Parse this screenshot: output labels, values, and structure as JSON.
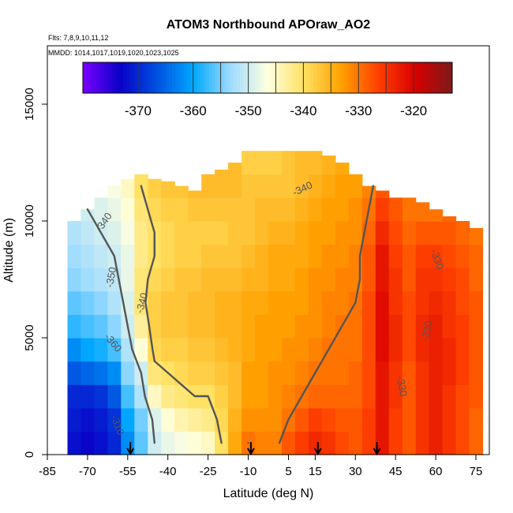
{
  "chart_data": {
    "type": "heatmap",
    "title": "ATOM3 Northbound APOraw_AO2",
    "subtitle_line1": "Flts: 7,8,9,10,11,12",
    "subtitle_line2": "MMDD: 1014,1017,1019,1020,1023,1025",
    "xlabel": "Latitude (deg N)",
    "ylabel": "Altitude (m)",
    "xlim": [
      -85,
      80
    ],
    "ylim": [
      0,
      17500
    ],
    "x_ticks": [
      -85,
      -70,
      -55,
      -40,
      -25,
      -10,
      5,
      15,
      30,
      45,
      60,
      75
    ],
    "y_ticks": [
      0,
      5000,
      10000,
      15000
    ],
    "colorbar": {
      "range": [
        -380,
        -313
      ],
      "ticks": [
        -370,
        -360,
        -350,
        -340,
        -330,
        -320
      ],
      "colors": [
        "#7a00ff",
        "#0a00c8",
        "#0050e0",
        "#00a8ff",
        "#9fdcff",
        "#ffffe0",
        "#ffe060",
        "#ffa000",
        "#ff4000",
        "#d80000",
        "#7c1a1a"
      ]
    },
    "contour_levels": [
      -350,
      -340,
      -330
    ],
    "contour_labels": [
      "-350",
      "-340",
      "-340",
      "-340",
      "-360",
      "-330",
      "-330",
      "-330",
      "-310"
    ],
    "flight_markers_lat": [
      -54,
      -9,
      16,
      38
    ],
    "profiles": [
      {
        "lat": -75,
        "top": 10000,
        "v": [
          -372,
          -371,
          -370,
          -366,
          -362,
          -358,
          -356,
          -354,
          -353,
          -352,
          -350,
          -349,
          -348
        ]
      },
      {
        "lat": -70,
        "top": 10500,
        "v": [
          -373,
          -372,
          -370,
          -365,
          -360,
          -357,
          -355,
          -353,
          -352,
          -351,
          -350,
          -349,
          -347
        ]
      },
      {
        "lat": -65,
        "top": 11000,
        "v": [
          -372,
          -371,
          -369,
          -364,
          -359,
          -356,
          -354,
          -352,
          -351,
          -350,
          -349,
          -348,
          -346
        ]
      },
      {
        "lat": -60,
        "top": 11500,
        "v": [
          -370,
          -369,
          -366,
          -362,
          -357,
          -354,
          -352,
          -351,
          -350,
          -349,
          -348,
          -347,
          -345
        ]
      },
      {
        "lat": -55,
        "top": 11800,
        "v": [
          -362,
          -360,
          -357,
          -354,
          -352,
          -350,
          -349,
          -348,
          -348,
          -347,
          -346,
          -345,
          -344
        ]
      },
      {
        "lat": -50,
        "top": 12000,
        "v": [
          -356,
          -355,
          -352,
          -350,
          -346,
          -343,
          -341,
          -341,
          -342,
          -342,
          -341,
          -340,
          -340
        ]
      },
      {
        "lat": -45,
        "top": 11800,
        "v": [
          -350,
          -349,
          -345,
          -341,
          -339,
          -338,
          -338,
          -339,
          -340,
          -340,
          -339,
          -338,
          -338
        ]
      },
      {
        "lat": -40,
        "top": 11700,
        "v": [
          -348,
          -346,
          -342,
          -340,
          -338,
          -337,
          -337,
          -338,
          -339,
          -339,
          -338,
          -337,
          -337
        ]
      },
      {
        "lat": -35,
        "top": 11500,
        "v": [
          -347,
          -344,
          -341,
          -339,
          -338,
          -337,
          -337,
          -337,
          -338,
          -338,
          -338,
          -337,
          -336
        ]
      },
      {
        "lat": -30,
        "top": 11300,
        "v": [
          -346,
          -343,
          -340,
          -338,
          -337,
          -336,
          -336,
          -337,
          -338,
          -338,
          -337,
          -336,
          -336
        ]
      },
      {
        "lat": -25,
        "top": 12000,
        "v": [
          -345,
          -342,
          -340,
          -338,
          -337,
          -336,
          -336,
          -336,
          -337,
          -338,
          -337,
          -336,
          -335
        ]
      },
      {
        "lat": -20,
        "top": 12200,
        "v": [
          -340,
          -339,
          -338,
          -337,
          -336,
          -335,
          -335,
          -336,
          -337,
          -338,
          -337,
          -336,
          -336
        ]
      },
      {
        "lat": -15,
        "top": 12500,
        "v": [
          -334,
          -335,
          -336,
          -336,
          -335,
          -335,
          -335,
          -336,
          -337,
          -337,
          -337,
          -336,
          -336
        ]
      },
      {
        "lat": -10,
        "top": 13000,
        "v": [
          -330,
          -332,
          -333,
          -333,
          -334,
          -334,
          -334,
          -335,
          -336,
          -337,
          -337,
          -337,
          -338
        ]
      },
      {
        "lat": -5,
        "top": 13000,
        "v": [
          -331,
          -332,
          -333,
          -333,
          -333,
          -333,
          -334,
          -335,
          -335,
          -336,
          -336,
          -337,
          -338
        ]
      },
      {
        "lat": 0,
        "top": 13000,
        "v": [
          -331,
          -332,
          -332,
          -332,
          -333,
          -333,
          -333,
          -334,
          -334,
          -335,
          -336,
          -337,
          -338
        ]
      },
      {
        "lat": 5,
        "top": 13000,
        "v": [
          -328,
          -330,
          -331,
          -332,
          -332,
          -333,
          -333,
          -334,
          -334,
          -335,
          -336,
          -337,
          -337
        ]
      },
      {
        "lat": 10,
        "top": 13000,
        "v": [
          -326,
          -328,
          -330,
          -331,
          -332,
          -332,
          -333,
          -333,
          -334,
          -334,
          -335,
          -336,
          -336
        ]
      },
      {
        "lat": 15,
        "top": 13000,
        "v": [
          -324,
          -326,
          -329,
          -330,
          -331,
          -332,
          -332,
          -332,
          -333,
          -333,
          -334,
          -335,
          -336
        ]
      },
      {
        "lat": 20,
        "top": 12800,
        "v": [
          -325,
          -327,
          -329,
          -330,
          -330,
          -331,
          -331,
          -332,
          -332,
          -333,
          -333,
          -334,
          -335
        ]
      },
      {
        "lat": 25,
        "top": 12500,
        "v": [
          -327,
          -328,
          -329,
          -330,
          -330,
          -330,
          -331,
          -331,
          -332,
          -332,
          -333,
          -333,
          -334
        ]
      },
      {
        "lat": 30,
        "top": 12000,
        "v": [
          -328,
          -328,
          -329,
          -329,
          -330,
          -330,
          -330,
          -331,
          -331,
          -332,
          -332,
          -333,
          -334
        ]
      },
      {
        "lat": 35,
        "top": 11500,
        "v": [
          -326,
          -326,
          -327,
          -327,
          -327,
          -327,
          -327,
          -328,
          -328,
          -329,
          -330,
          -331,
          -332
        ]
      },
      {
        "lat": 40,
        "top": 11300,
        "v": [
          -322,
          -322,
          -322,
          -322,
          -321,
          -321,
          -321,
          -322,
          -322,
          -324,
          -326,
          -328,
          -330
        ]
      },
      {
        "lat": 45,
        "top": 11000,
        "v": [
          -326,
          -326,
          -325,
          -325,
          -324,
          -324,
          -325,
          -325,
          -326,
          -327,
          -328,
          -330,
          -331
        ]
      },
      {
        "lat": 50,
        "top": 11000,
        "v": [
          -328,
          -328,
          -328,
          -328,
          -327,
          -327,
          -327,
          -328,
          -328,
          -329,
          -330,
          -331,
          -332
        ]
      },
      {
        "lat": 55,
        "top": 10800,
        "v": [
          -325,
          -325,
          -325,
          -325,
          -324,
          -324,
          -325,
          -325,
          -326,
          -328,
          -330,
          -331,
          -332
        ]
      },
      {
        "lat": 60,
        "top": 10500,
        "v": [
          -323,
          -323,
          -323,
          -323,
          -323,
          -323,
          -324,
          -325,
          -326,
          -328,
          -330,
          -331,
          -332
        ]
      },
      {
        "lat": 65,
        "top": 10200,
        "v": [
          -325,
          -325,
          -325,
          -324,
          -324,
          -325,
          -325,
          -326,
          -327,
          -328,
          -329,
          -330,
          -331
        ]
      },
      {
        "lat": 70,
        "top": 10000,
        "v": [
          -327,
          -327,
          -327,
          -326,
          -326,
          -326,
          -327,
          -327,
          -328,
          -329,
          -330,
          -331,
          -332
        ]
      },
      {
        "lat": 75,
        "top": 9700,
        "v": [
          -329,
          -329,
          -328,
          -328,
          -328,
          -328,
          -328,
          -329,
          -329,
          -330,
          -331,
          -332,
          -333
        ]
      }
    ]
  }
}
